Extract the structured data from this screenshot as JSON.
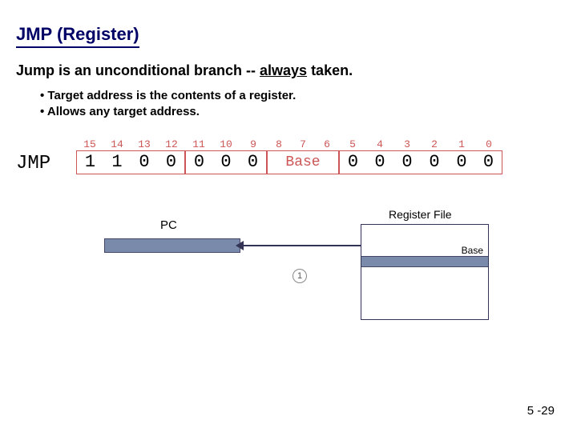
{
  "title": "JMP (Register)",
  "subtitle_parts": {
    "pre": "Jump is an unconditional branch -- ",
    "em": "always",
    "post": " taken."
  },
  "bullets": [
    "Target address is the contents of a register.",
    "Allows any target address."
  ],
  "encoding": {
    "mnemonic": "JMP",
    "bit_indices": [
      "15",
      "14",
      "13",
      "12",
      "11",
      "10",
      "9",
      "8",
      "7",
      "6",
      "5",
      "4",
      "3",
      "2",
      "1",
      "0"
    ],
    "opcode_bits": [
      "1",
      "1",
      "0",
      "0"
    ],
    "pad_bits": [
      "0",
      "0",
      "0"
    ],
    "base_label": "Base",
    "trailing_bits": [
      "0",
      "0",
      "0",
      "0",
      "0",
      "0"
    ],
    "colors": {
      "border": "#cc5555",
      "index_text": "#cc5555",
      "bit_text": "#000000",
      "base_text": "#cc5555"
    },
    "cell_width_small": 34,
    "cell_width_base": 90,
    "font_size_bits": 22,
    "font_size_index": 13
  },
  "diagram": {
    "pc_label": "PC",
    "regfile_label": "Register File",
    "base_row_label": "Base",
    "step_number": "1",
    "colors": {
      "box_fill": "#7a8aaa",
      "box_border": "#444466",
      "line": "#333355",
      "text": "#000000"
    }
  },
  "page_number": "5 -29"
}
